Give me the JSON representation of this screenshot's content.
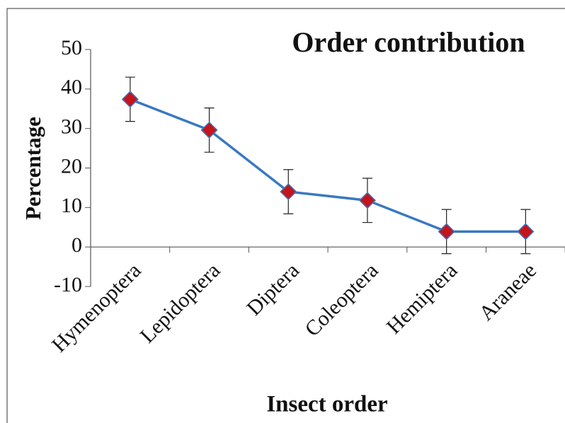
{
  "chart_data": {
    "type": "line",
    "title": "Order contribution",
    "x_label": "Insect order",
    "y_label": "Percentage",
    "categories": [
      "Hymenoptera",
      "Lepidoptera",
      "Diptera",
      "Coleoptera",
      "Hemiptera",
      "Araneae"
    ],
    "series": [
      {
        "name": "Order contribution",
        "color": "#3a78c2",
        "marker_color": "#c4141c",
        "values": [
          37.4,
          29.6,
          14.0,
          11.8,
          3.9,
          3.9
        ],
        "errors": [
          5.6,
          5.6,
          5.6,
          5.6,
          5.6,
          5.6
        ]
      }
    ],
    "ylim": [
      -10,
      50
    ],
    "yticks": [
      -10,
      0,
      10,
      20,
      30,
      40,
      50
    ],
    "grid": false
  }
}
